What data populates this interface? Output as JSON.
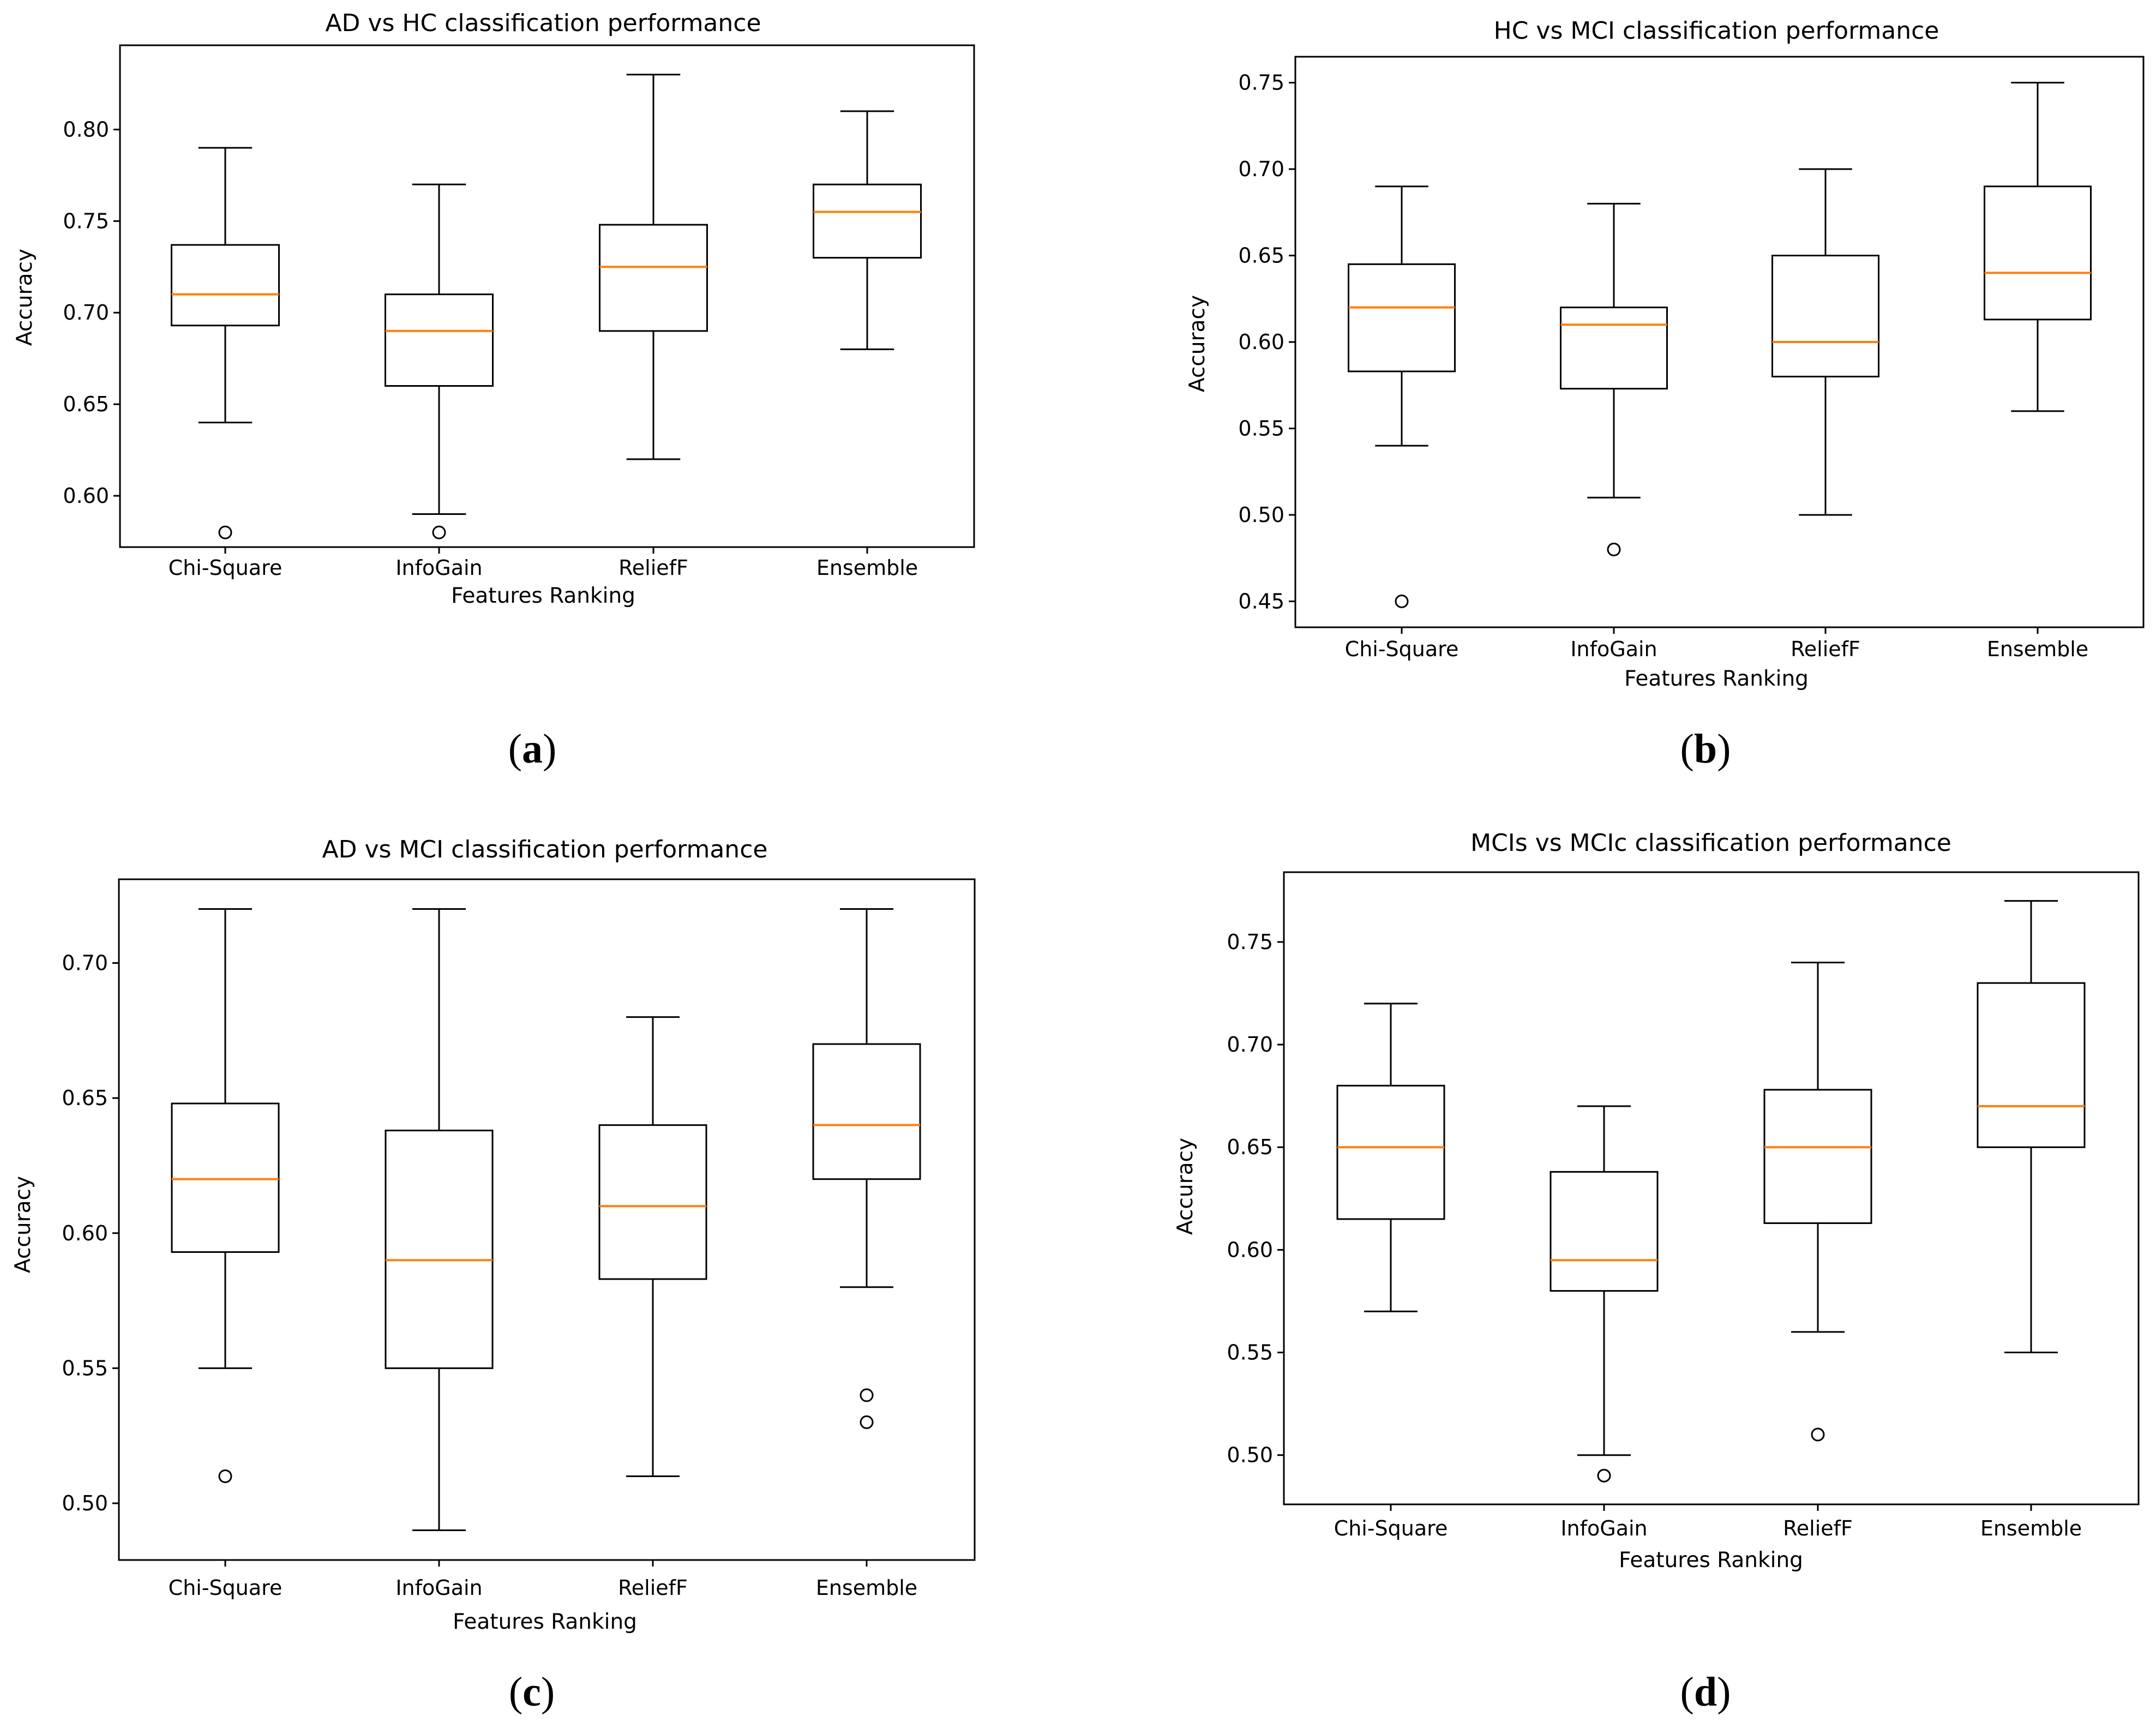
{
  "chart_data": [
    {
      "panel": "a",
      "type": "boxplot",
      "title": "AD vs HC classification performance",
      "xlabel": "Features Ranking",
      "ylabel": "Accuracy",
      "ylim": [
        0.572,
        0.846
      ],
      "yticks": [
        0.6,
        0.65,
        0.7,
        0.75,
        0.8
      ],
      "yticklabels": [
        "0.60",
        "0.65",
        "0.70",
        "0.75",
        "0.80"
      ],
      "categories": [
        "Chi-Square",
        "InfoGain",
        "ReliefF",
        "Ensemble"
      ],
      "boxes": [
        {
          "whislo": 0.64,
          "q1": 0.693,
          "med": 0.71,
          "q3": 0.737,
          "whishi": 0.79,
          "fliers": [
            0.58
          ]
        },
        {
          "whislo": 0.59,
          "q1": 0.66,
          "med": 0.69,
          "q3": 0.71,
          "whishi": 0.77,
          "fliers": [
            0.58
          ]
        },
        {
          "whislo": 0.62,
          "q1": 0.69,
          "med": 0.725,
          "q3": 0.748,
          "whishi": 0.83,
          "fliers": []
        },
        {
          "whislo": 0.68,
          "q1": 0.73,
          "med": 0.755,
          "q3": 0.77,
          "whishi": 0.81,
          "fliers": []
        }
      ]
    },
    {
      "panel": "b",
      "type": "boxplot",
      "title": "HC vs MCI classification performance",
      "xlabel": "Features Ranking",
      "ylabel": "Accuracy",
      "ylim": [
        0.435,
        0.765
      ],
      "yticks": [
        0.45,
        0.5,
        0.55,
        0.6,
        0.65,
        0.7,
        0.75
      ],
      "yticklabels": [
        "0.45",
        "0.50",
        "0.55",
        "0.60",
        "0.65",
        "0.70",
        "0.75"
      ],
      "categories": [
        "Chi-Square",
        "InfoGain",
        "ReliefF",
        "Ensemble"
      ],
      "boxes": [
        {
          "whislo": 0.54,
          "q1": 0.583,
          "med": 0.62,
          "q3": 0.645,
          "whishi": 0.69,
          "fliers": [
            0.45
          ]
        },
        {
          "whislo": 0.51,
          "q1": 0.573,
          "med": 0.61,
          "q3": 0.62,
          "whishi": 0.68,
          "fliers": [
            0.48
          ]
        },
        {
          "whislo": 0.5,
          "q1": 0.58,
          "med": 0.6,
          "q3": 0.65,
          "whishi": 0.7,
          "fliers": []
        },
        {
          "whislo": 0.56,
          "q1": 0.613,
          "med": 0.64,
          "q3": 0.69,
          "whishi": 0.75,
          "fliers": []
        }
      ]
    },
    {
      "panel": "c",
      "type": "boxplot",
      "title": "AD vs MCI classification performance",
      "xlabel": "Features Ranking",
      "ylabel": "Accuracy",
      "ylim": [
        0.479,
        0.731
      ],
      "yticks": [
        0.5,
        0.55,
        0.6,
        0.65,
        0.7
      ],
      "yticklabels": [
        "0.50",
        "0.55",
        "0.60",
        "0.65",
        "0.70"
      ],
      "categories": [
        "Chi-Square",
        "InfoGain",
        "ReliefF",
        "Ensemble"
      ],
      "boxes": [
        {
          "whislo": 0.55,
          "q1": 0.593,
          "med": 0.62,
          "q3": 0.648,
          "whishi": 0.72,
          "fliers": [
            0.51
          ]
        },
        {
          "whislo": 0.49,
          "q1": 0.55,
          "med": 0.59,
          "q3": 0.638,
          "whishi": 0.72,
          "fliers": []
        },
        {
          "whislo": 0.51,
          "q1": 0.583,
          "med": 0.61,
          "q3": 0.64,
          "whishi": 0.68,
          "fliers": []
        },
        {
          "whislo": 0.58,
          "q1": 0.62,
          "med": 0.64,
          "q3": 0.67,
          "whishi": 0.72,
          "fliers": [
            0.54,
            0.53
          ]
        }
      ]
    },
    {
      "panel": "d",
      "type": "boxplot",
      "title": "MCIs vs MCIc classification performance",
      "xlabel": "Features Ranking",
      "ylabel": "Accuracy",
      "ylim": [
        0.476,
        0.784
      ],
      "yticks": [
        0.5,
        0.55,
        0.6,
        0.65,
        0.7,
        0.75
      ],
      "yticklabels": [
        "0.50",
        "0.55",
        "0.60",
        "0.65",
        "0.70",
        "0.75"
      ],
      "categories": [
        "Chi-Square",
        "InfoGain",
        "ReliefF",
        "Ensemble"
      ],
      "boxes": [
        {
          "whislo": 0.57,
          "q1": 0.615,
          "med": 0.65,
          "q3": 0.68,
          "whishi": 0.72,
          "fliers": []
        },
        {
          "whislo": 0.5,
          "q1": 0.58,
          "med": 0.595,
          "q3": 0.638,
          "whishi": 0.67,
          "fliers": [
            0.49
          ]
        },
        {
          "whislo": 0.56,
          "q1": 0.613,
          "med": 0.65,
          "q3": 0.678,
          "whishi": 0.74,
          "fliers": [
            0.51
          ]
        },
        {
          "whislo": 0.55,
          "q1": 0.65,
          "med": 0.67,
          "q3": 0.73,
          "whishi": 0.77,
          "fliers": []
        }
      ]
    }
  ],
  "captions": {
    "a": {
      "open": "(",
      "letter": "a",
      "close": ")"
    },
    "b": {
      "open": "(",
      "letter": "b",
      "close": ")"
    },
    "c": {
      "open": "(",
      "letter": "c",
      "close": ")"
    },
    "d": {
      "open": "(",
      "letter": "d",
      "close": ")"
    }
  },
  "colors": {
    "median": "#ff7f0e",
    "box": "#000000",
    "background": "#ffffff"
  }
}
